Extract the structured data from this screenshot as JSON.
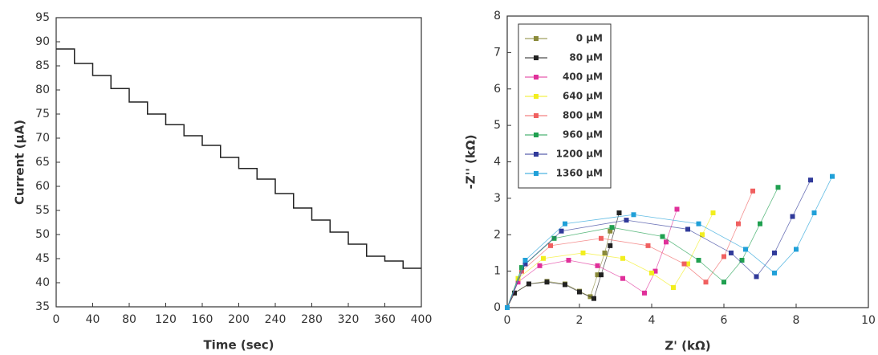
{
  "chart_data": [
    {
      "type": "line",
      "x_label": "Time (sec)",
      "y_label": "Current (µA)",
      "x": [
        0,
        20,
        20,
        40,
        40,
        60,
        60,
        80,
        80,
        100,
        100,
        120,
        120,
        140,
        140,
        160,
        160,
        180,
        180,
        200,
        200,
        220,
        220,
        240,
        240,
        260,
        260,
        280,
        280,
        300,
        300,
        320,
        320,
        340,
        340,
        360,
        360,
        380,
        380,
        400
      ],
      "values": [
        88.5,
        88.5,
        85.5,
        85.5,
        83,
        83,
        80.3,
        80.3,
        77.5,
        77.5,
        75,
        75,
        72.8,
        72.8,
        70.5,
        70.5,
        68.5,
        68.5,
        66,
        66,
        63.7,
        63.7,
        61.5,
        61.5,
        58.5,
        58.5,
        55.5,
        55.5,
        53,
        53,
        50.5,
        50.5,
        48,
        48,
        45.5,
        45.5,
        44.5,
        44.5,
        43,
        43
      ],
      "color": "#222222",
      "xlim": [
        0,
        400
      ],
      "xticks": [
        0,
        40,
        80,
        120,
        160,
        200,
        240,
        280,
        320,
        360,
        400
      ],
      "ylim": [
        35,
        95
      ],
      "yticks": [
        35,
        40,
        45,
        50,
        55,
        60,
        65,
        70,
        75,
        80,
        85,
        90,
        95
      ]
    },
    {
      "type": "scatter-line",
      "x_label": "Z' (kΩ)",
      "y_label": "-Z'' (kΩ)",
      "legend": "upper left",
      "xlim": [
        0,
        10
      ],
      "xticks": [
        0,
        2,
        4,
        6,
        8,
        10
      ],
      "ylim": [
        0,
        8
      ],
      "yticks": [
        0,
        1,
        2,
        3,
        4,
        5,
        6,
        7,
        8
      ],
      "series": [
        {
          "name": "0 µM",
          "color": "#8a8a3a",
          "x": [
            0,
            0.2,
            0.6,
            1.1,
            1.6,
            2.0,
            2.3,
            2.5,
            2.7,
            2.85
          ],
          "values": [
            0,
            0.4,
            0.65,
            0.72,
            0.65,
            0.45,
            0.3,
            0.9,
            1.5,
            2.1
          ]
        },
        {
          "name": "80 µM",
          "color": "#222222",
          "x": [
            0,
            0.2,
            0.6,
            1.1,
            1.6,
            2.0,
            2.4,
            2.6,
            2.85,
            3.1
          ],
          "values": [
            0,
            0.4,
            0.65,
            0.7,
            0.63,
            0.43,
            0.25,
            0.9,
            1.7,
            2.6
          ]
        },
        {
          "name": "400 µM",
          "color": "#e0309a",
          "x": [
            0,
            0.3,
            0.9,
            1.7,
            2.5,
            3.2,
            3.8,
            4.1,
            4.4,
            4.7
          ],
          "values": [
            0,
            0.7,
            1.15,
            1.3,
            1.15,
            0.8,
            0.4,
            1.0,
            1.8,
            2.7
          ]
        },
        {
          "name": "640 µM",
          "color": "#f2ee1e",
          "x": [
            0,
            0.3,
            1.0,
            2.1,
            3.2,
            4.0,
            4.6,
            5.0,
            5.4,
            5.7
          ],
          "values": [
            0,
            0.8,
            1.35,
            1.5,
            1.35,
            0.95,
            0.55,
            1.2,
            2.0,
            2.6
          ]
        },
        {
          "name": "800 µM",
          "color": "#f06060",
          "x": [
            0,
            0.4,
            1.2,
            2.6,
            3.9,
            4.9,
            5.5,
            6.0,
            6.4,
            6.8
          ],
          "values": [
            0,
            1.0,
            1.7,
            1.9,
            1.7,
            1.2,
            0.7,
            1.4,
            2.3,
            3.2
          ]
        },
        {
          "name": "960 µM",
          "color": "#20a050",
          "x": [
            0,
            0.4,
            1.3,
            2.9,
            4.3,
            5.3,
            6.0,
            6.5,
            7.0,
            7.5
          ],
          "values": [
            0,
            1.1,
            1.9,
            2.2,
            1.95,
            1.3,
            0.7,
            1.3,
            2.3,
            3.3
          ]
        },
        {
          "name": "1200 µM",
          "color": "#303a9a",
          "x": [
            0,
            0.5,
            1.5,
            3.3,
            5.0,
            6.2,
            6.9,
            7.4,
            7.9,
            8.4
          ],
          "values": [
            0,
            1.2,
            2.1,
            2.4,
            2.15,
            1.5,
            0.85,
            1.5,
            2.5,
            3.5
          ]
        },
        {
          "name": "1360 µM",
          "color": "#20a0d8",
          "x": [
            0,
            0.5,
            1.6,
            3.5,
            5.3,
            6.6,
            7.4,
            8.0,
            8.5,
            9.0
          ],
          "values": [
            0,
            1.3,
            2.3,
            2.55,
            2.3,
            1.6,
            0.95,
            1.6,
            2.6,
            3.6
          ]
        }
      ]
    }
  ]
}
